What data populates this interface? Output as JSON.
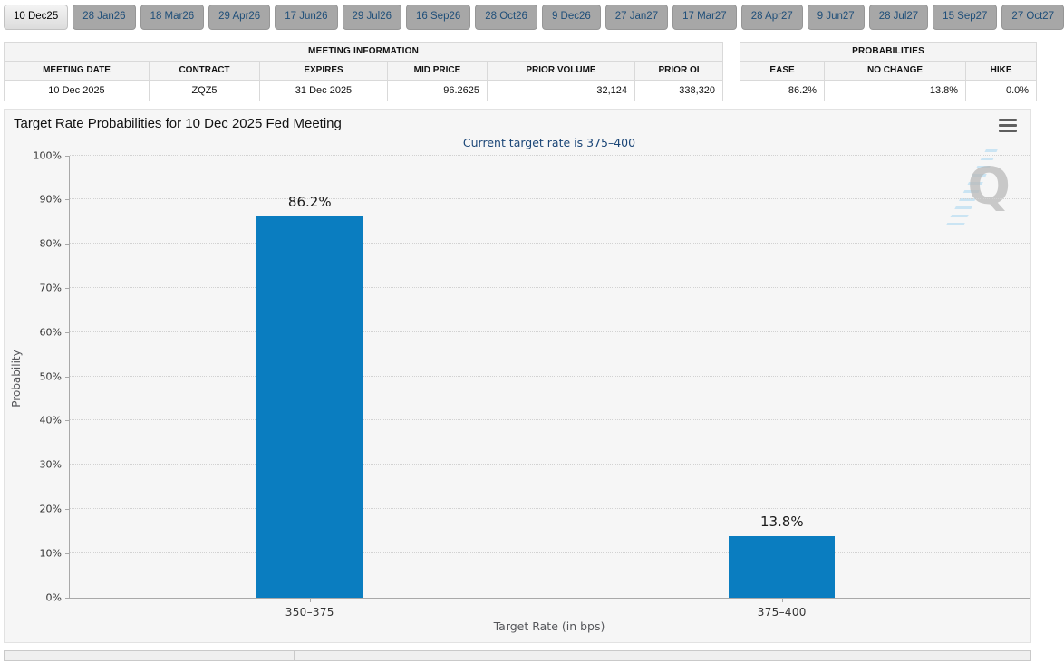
{
  "tabs": [
    {
      "label": "10 Dec25",
      "active": true
    },
    {
      "label": "28 Jan26",
      "active": false
    },
    {
      "label": "18 Mar26",
      "active": false
    },
    {
      "label": "29 Apr26",
      "active": false
    },
    {
      "label": "17 Jun26",
      "active": false
    },
    {
      "label": "29 Jul26",
      "active": false
    },
    {
      "label": "16 Sep26",
      "active": false
    },
    {
      "label": "28 Oct26",
      "active": false
    },
    {
      "label": "9 Dec26",
      "active": false
    },
    {
      "label": "27 Jan27",
      "active": false
    },
    {
      "label": "17 Mar27",
      "active": false
    },
    {
      "label": "28 Apr27",
      "active": false
    },
    {
      "label": "9 Jun27",
      "active": false
    },
    {
      "label": "28 Jul27",
      "active": false
    },
    {
      "label": "15 Sep27",
      "active": false
    },
    {
      "label": "27 Oct27",
      "active": false
    }
  ],
  "meeting_info": {
    "title": "MEETING INFORMATION",
    "headers": [
      "MEETING DATE",
      "CONTRACT",
      "EXPIRES",
      "MID PRICE",
      "PRIOR VOLUME",
      "PRIOR OI"
    ],
    "row": {
      "meeting_date": "10 Dec 2025",
      "contract": "ZQZ5",
      "expires": "31 Dec 2025",
      "mid_price": "96.2625",
      "prior_volume": "32,124",
      "prior_oi": "338,320"
    }
  },
  "probabilities": {
    "title": "PROBABILITIES",
    "headers": [
      "EASE",
      "NO CHANGE",
      "HIKE"
    ],
    "row": {
      "ease": "86.2%",
      "no_change": "13.8%",
      "hike": "0.0%"
    }
  },
  "chart_data": {
    "type": "bar",
    "title": "Target Rate Probabilities for 10 Dec 2025 Fed Meeting",
    "subtitle": "Current target rate is 375–400",
    "xlabel": "Target Rate (in bps)",
    "ylabel": "Probability",
    "categories": [
      "350–375",
      "375–400"
    ],
    "values": [
      86.2,
      13.8
    ],
    "bar_labels": [
      "86.2%",
      "13.8%"
    ],
    "ylim": [
      0,
      100
    ],
    "y_tick_step": 10,
    "y_tick_suffix": "%",
    "grid": "horizontal-dotted",
    "legend": "none",
    "bar_color": "#0a7dc0",
    "bar_centers_pct": [
      25,
      74.2
    ],
    "menu_icon": "hamburger-menu-icon",
    "watermark_letter": "Q"
  }
}
